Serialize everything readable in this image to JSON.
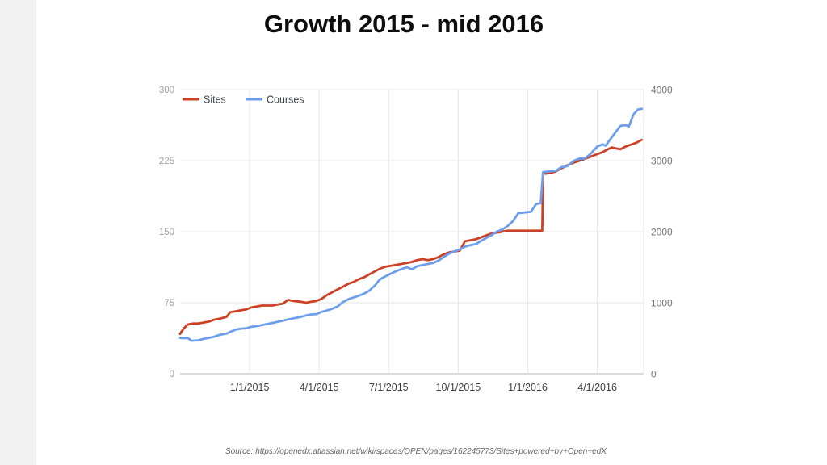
{
  "page": {
    "background": "#ffffff",
    "left_strip_color": "#f1f1f2"
  },
  "title": "Growth 2015 - mid 2016",
  "source_note": "Source: https://openedx.atlassian.net/wiki/spaces/OPEN/pages/162245773/Sites+powered+by+Open+edX",
  "chart_data": {
    "type": "line",
    "title": "Growth 2015 - mid 2016",
    "grid": true,
    "legend_position": "top-left-inside",
    "style": {
      "gridline_color": "#e6e6e6",
      "axis_line_color": "#b7b7b7",
      "left_tick_color": "#9e9e9e",
      "right_tick_color": "#757575",
      "x_tick_color": "#3c4043",
      "legend_text_color": "#3c4043"
    },
    "x_axis": {
      "domain": [
        "2014-10-01",
        "2016-06-01"
      ],
      "ticks": [
        {
          "date": "2015-01-01",
          "label": "1/1/2015"
        },
        {
          "date": "2015-04-01",
          "label": "4/1/2015"
        },
        {
          "date": "2015-07-01",
          "label": "7/1/2015"
        },
        {
          "date": "2015-10-01",
          "label": "10/1/2015"
        },
        {
          "date": "2016-01-01",
          "label": "1/1/2016"
        },
        {
          "date": "2016-04-01",
          "label": "4/1/2016"
        }
      ]
    },
    "y_axis_left": {
      "max": 300,
      "ticks": [
        300,
        225,
        150,
        75,
        0
      ],
      "series": "Sites"
    },
    "y_axis_right": {
      "max": 4000,
      "ticks": [
        4000,
        3000,
        2000,
        1000,
        0
      ],
      "series": "Courses"
    },
    "series": [
      {
        "name": "Sites",
        "color": "#cc4125",
        "axis": "left",
        "points": [
          [
            "2014-10-01",
            42
          ],
          [
            "2014-10-06",
            48
          ],
          [
            "2014-10-11",
            52
          ],
          [
            "2014-10-18",
            53
          ],
          [
            "2014-10-25",
            53
          ],
          [
            "2014-11-01",
            54
          ],
          [
            "2014-11-08",
            55
          ],
          [
            "2014-11-15",
            57
          ],
          [
            "2014-11-22",
            58
          ],
          [
            "2014-12-01",
            60
          ],
          [
            "2014-12-06",
            65
          ],
          [
            "2014-12-13",
            66
          ],
          [
            "2014-12-20",
            67
          ],
          [
            "2014-12-27",
            68
          ],
          [
            "2015-01-03",
            70
          ],
          [
            "2015-01-10",
            71
          ],
          [
            "2015-01-17",
            72
          ],
          [
            "2015-01-31",
            72
          ],
          [
            "2015-02-07",
            73
          ],
          [
            "2015-02-14",
            74
          ],
          [
            "2015-02-21",
            78
          ],
          [
            "2015-02-28",
            77
          ],
          [
            "2015-03-07",
            76
          ],
          [
            "2015-03-14",
            75
          ],
          [
            "2015-03-21",
            76
          ],
          [
            "2015-03-28",
            77
          ],
          [
            "2015-04-04",
            79
          ],
          [
            "2015-04-11",
            83
          ],
          [
            "2015-04-18",
            86
          ],
          [
            "2015-04-25",
            89
          ],
          [
            "2015-05-02",
            92
          ],
          [
            "2015-05-09",
            95
          ],
          [
            "2015-05-16",
            97
          ],
          [
            "2015-05-23",
            100
          ],
          [
            "2015-05-30",
            102
          ],
          [
            "2015-06-06",
            105
          ],
          [
            "2015-06-13",
            108
          ],
          [
            "2015-06-20",
            111
          ],
          [
            "2015-06-27",
            113
          ],
          [
            "2015-07-04",
            114
          ],
          [
            "2015-07-11",
            115
          ],
          [
            "2015-07-18",
            116
          ],
          [
            "2015-07-25",
            117
          ],
          [
            "2015-08-01",
            118
          ],
          [
            "2015-08-08",
            120
          ],
          [
            "2015-08-15",
            121
          ],
          [
            "2015-08-22",
            120
          ],
          [
            "2015-08-29",
            121
          ],
          [
            "2015-09-05",
            123
          ],
          [
            "2015-09-12",
            126
          ],
          [
            "2015-09-19",
            128
          ],
          [
            "2015-09-26",
            129
          ],
          [
            "2015-10-03",
            130
          ],
          [
            "2015-10-10",
            140
          ],
          [
            "2015-10-17",
            141
          ],
          [
            "2015-10-24",
            142
          ],
          [
            "2015-10-31",
            144
          ],
          [
            "2015-11-07",
            146
          ],
          [
            "2015-11-14",
            148
          ],
          [
            "2015-11-21",
            149
          ],
          [
            "2015-11-28",
            150
          ],
          [
            "2015-12-05",
            151
          ],
          [
            "2016-01-20",
            151
          ],
          [
            "2016-01-21",
            211
          ],
          [
            "2016-02-01",
            212
          ],
          [
            "2016-02-08",
            214
          ],
          [
            "2016-02-15",
            217
          ],
          [
            "2016-02-22",
            220
          ],
          [
            "2016-03-01",
            223
          ],
          [
            "2016-03-08",
            225
          ],
          [
            "2016-03-15",
            227
          ],
          [
            "2016-03-22",
            229
          ],
          [
            "2016-04-01",
            232
          ],
          [
            "2016-04-08",
            234
          ],
          [
            "2016-04-15",
            237
          ],
          [
            "2016-04-20",
            239
          ],
          [
            "2016-04-25",
            238
          ],
          [
            "2016-05-01",
            237
          ],
          [
            "2016-05-08",
            240
          ],
          [
            "2016-05-15",
            242
          ],
          [
            "2016-05-22",
            244
          ],
          [
            "2016-05-29",
            247
          ]
        ]
      },
      {
        "name": "Courses",
        "color": "#6d9eeb",
        "axis": "right",
        "points": [
          [
            "2014-10-01",
            505
          ],
          [
            "2014-10-06",
            500
          ],
          [
            "2014-10-11",
            505
          ],
          [
            "2014-10-16",
            465
          ],
          [
            "2014-10-25",
            470
          ],
          [
            "2014-11-01",
            490
          ],
          [
            "2014-11-08",
            505
          ],
          [
            "2014-11-15",
            520
          ],
          [
            "2014-11-22",
            545
          ],
          [
            "2014-12-01",
            565
          ],
          [
            "2014-12-06",
            590
          ],
          [
            "2014-12-13",
            620
          ],
          [
            "2014-12-20",
            635
          ],
          [
            "2014-12-27",
            640
          ],
          [
            "2015-01-03",
            660
          ],
          [
            "2015-01-10",
            670
          ],
          [
            "2015-01-17",
            685
          ],
          [
            "2015-01-24",
            700
          ],
          [
            "2015-01-31",
            715
          ],
          [
            "2015-02-07",
            730
          ],
          [
            "2015-02-14",
            745
          ],
          [
            "2015-02-21",
            765
          ],
          [
            "2015-02-28",
            780
          ],
          [
            "2015-03-07",
            800
          ],
          [
            "2015-03-14",
            820
          ],
          [
            "2015-03-21",
            835
          ],
          [
            "2015-03-28",
            840
          ],
          [
            "2015-04-04",
            870
          ],
          [
            "2015-04-11",
            890
          ],
          [
            "2015-04-18",
            915
          ],
          [
            "2015-04-25",
            945
          ],
          [
            "2015-05-02",
            1010
          ],
          [
            "2015-05-09",
            1050
          ],
          [
            "2015-05-16",
            1075
          ],
          [
            "2015-05-23",
            1100
          ],
          [
            "2015-05-30",
            1130
          ],
          [
            "2015-06-06",
            1170
          ],
          [
            "2015-06-13",
            1240
          ],
          [
            "2015-06-20",
            1330
          ],
          [
            "2015-06-27",
            1370
          ],
          [
            "2015-07-04",
            1410
          ],
          [
            "2015-07-11",
            1445
          ],
          [
            "2015-07-18",
            1475
          ],
          [
            "2015-07-25",
            1500
          ],
          [
            "2015-08-01",
            1470
          ],
          [
            "2015-08-08",
            1515
          ],
          [
            "2015-08-15",
            1530
          ],
          [
            "2015-08-22",
            1545
          ],
          [
            "2015-08-29",
            1560
          ],
          [
            "2015-09-05",
            1590
          ],
          [
            "2015-09-12",
            1640
          ],
          [
            "2015-09-19",
            1690
          ],
          [
            "2015-09-26",
            1720
          ],
          [
            "2015-10-03",
            1750
          ],
          [
            "2015-10-10",
            1790
          ],
          [
            "2015-10-17",
            1810
          ],
          [
            "2015-10-24",
            1825
          ],
          [
            "2015-10-31",
            1870
          ],
          [
            "2015-11-07",
            1910
          ],
          [
            "2015-11-14",
            1950
          ],
          [
            "2015-11-21",
            2000
          ],
          [
            "2015-11-28",
            2030
          ],
          [
            "2015-12-05",
            2080
          ],
          [
            "2015-12-12",
            2150
          ],
          [
            "2015-12-19",
            2260
          ],
          [
            "2015-12-27",
            2270
          ],
          [
            "2016-01-05",
            2280
          ],
          [
            "2016-01-12",
            2390
          ],
          [
            "2016-01-18",
            2400
          ],
          [
            "2016-01-21",
            2840
          ],
          [
            "2016-02-01",
            2850
          ],
          [
            "2016-02-08",
            2860
          ],
          [
            "2016-02-15",
            2910
          ],
          [
            "2016-02-22",
            2920
          ],
          [
            "2016-03-01",
            3000
          ],
          [
            "2016-03-08",
            3030
          ],
          [
            "2016-03-15",
            3030
          ],
          [
            "2016-03-22",
            3090
          ],
          [
            "2016-04-01",
            3200
          ],
          [
            "2016-04-08",
            3230
          ],
          [
            "2016-04-12",
            3210
          ],
          [
            "2016-04-18",
            3300
          ],
          [
            "2016-04-25",
            3400
          ],
          [
            "2016-05-01",
            3490
          ],
          [
            "2016-05-08",
            3500
          ],
          [
            "2016-05-12",
            3480
          ],
          [
            "2016-05-18",
            3650
          ],
          [
            "2016-05-24",
            3720
          ],
          [
            "2016-05-29",
            3730
          ]
        ]
      }
    ]
  }
}
